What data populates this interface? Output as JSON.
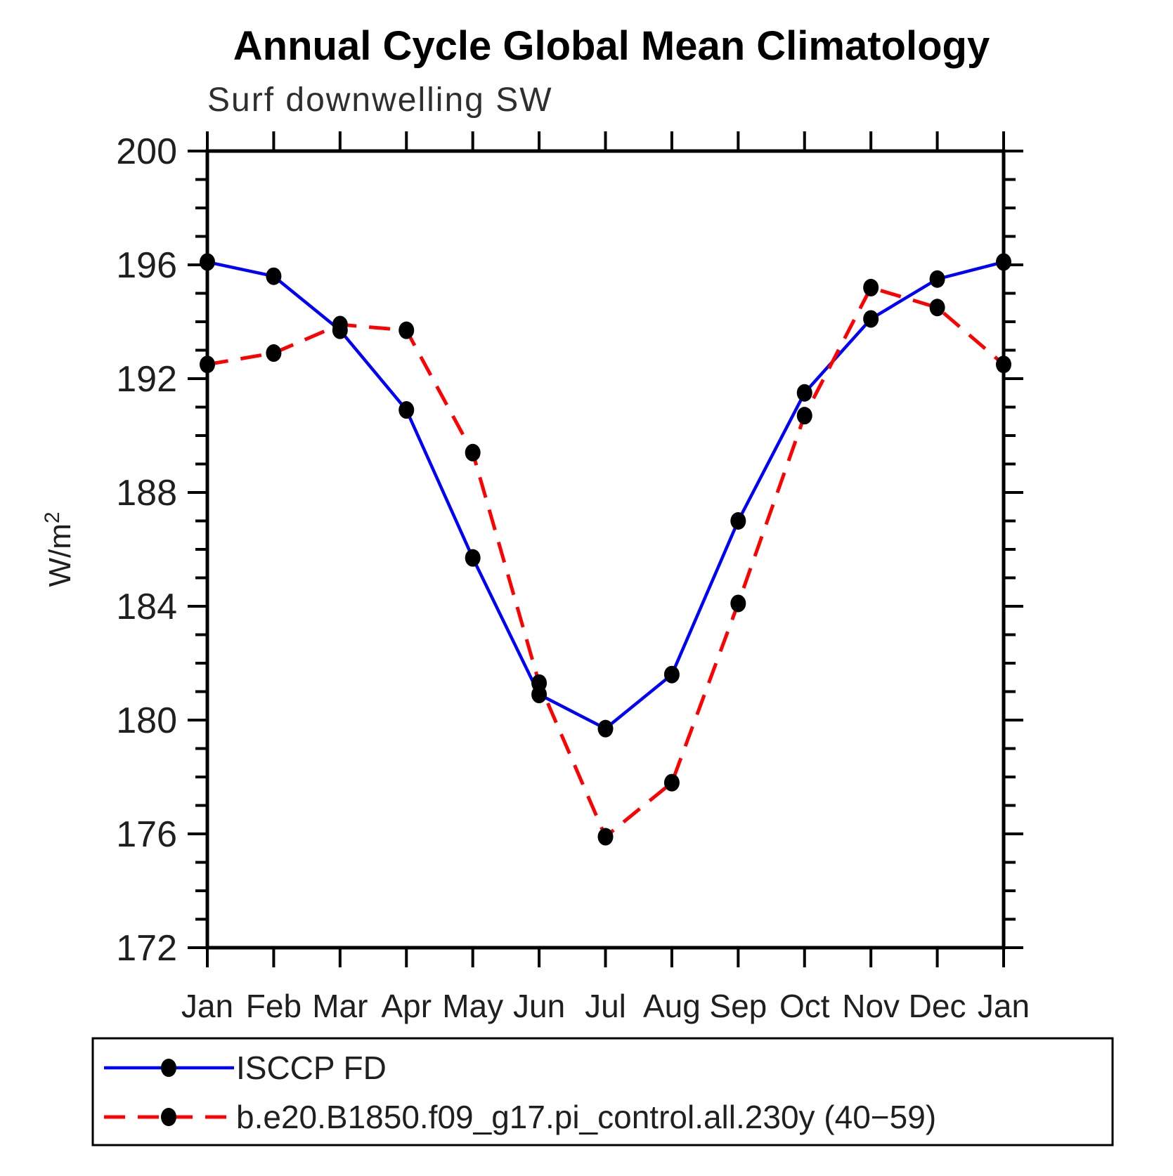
{
  "page": {
    "background": "#ffffff"
  },
  "chart_data": {
    "type": "line",
    "title": "Annual Cycle Global Mean Climatology",
    "subtitle": "Surf downwelling SW",
    "ylabel": "W/m²",
    "ylabel_base": "W/m",
    "ylabel_exp": "2",
    "x_categories": [
      "Jan",
      "Feb",
      "Mar",
      "Apr",
      "May",
      "Jun",
      "Jul",
      "Aug",
      "Sep",
      "Oct",
      "Nov",
      "Dec",
      "Jan"
    ],
    "ylim": [
      172,
      200
    ],
    "ytick_major_step": 4,
    "ytick_minor_step": 1,
    "ytick_labels": [
      "172",
      "176",
      "180",
      "184",
      "188",
      "192",
      "196",
      "200"
    ],
    "grid": "off",
    "legend_position": "bottom-left-box",
    "axis_color": "#000000",
    "text_color": "#1f1f1f",
    "marker_color": "#000000",
    "series": [
      {
        "name": "ISCCP FD",
        "color": "#0000ff",
        "style": "solid",
        "marker": "circle",
        "values": [
          196.1,
          195.6,
          193.7,
          190.9,
          185.7,
          180.9,
          179.7,
          181.6,
          187.0,
          191.5,
          194.1,
          195.5,
          196.1
        ]
      },
      {
        "name": "b.e20.B1850.f09_g17.pi_control.all.230y (40−59)",
        "color": "#ff0000",
        "style": "dashed",
        "marker": "circle",
        "values": [
          192.5,
          192.9,
          193.9,
          193.7,
          189.4,
          181.3,
          175.9,
          177.8,
          184.1,
          190.7,
          195.2,
          194.5,
          192.5
        ]
      }
    ]
  }
}
